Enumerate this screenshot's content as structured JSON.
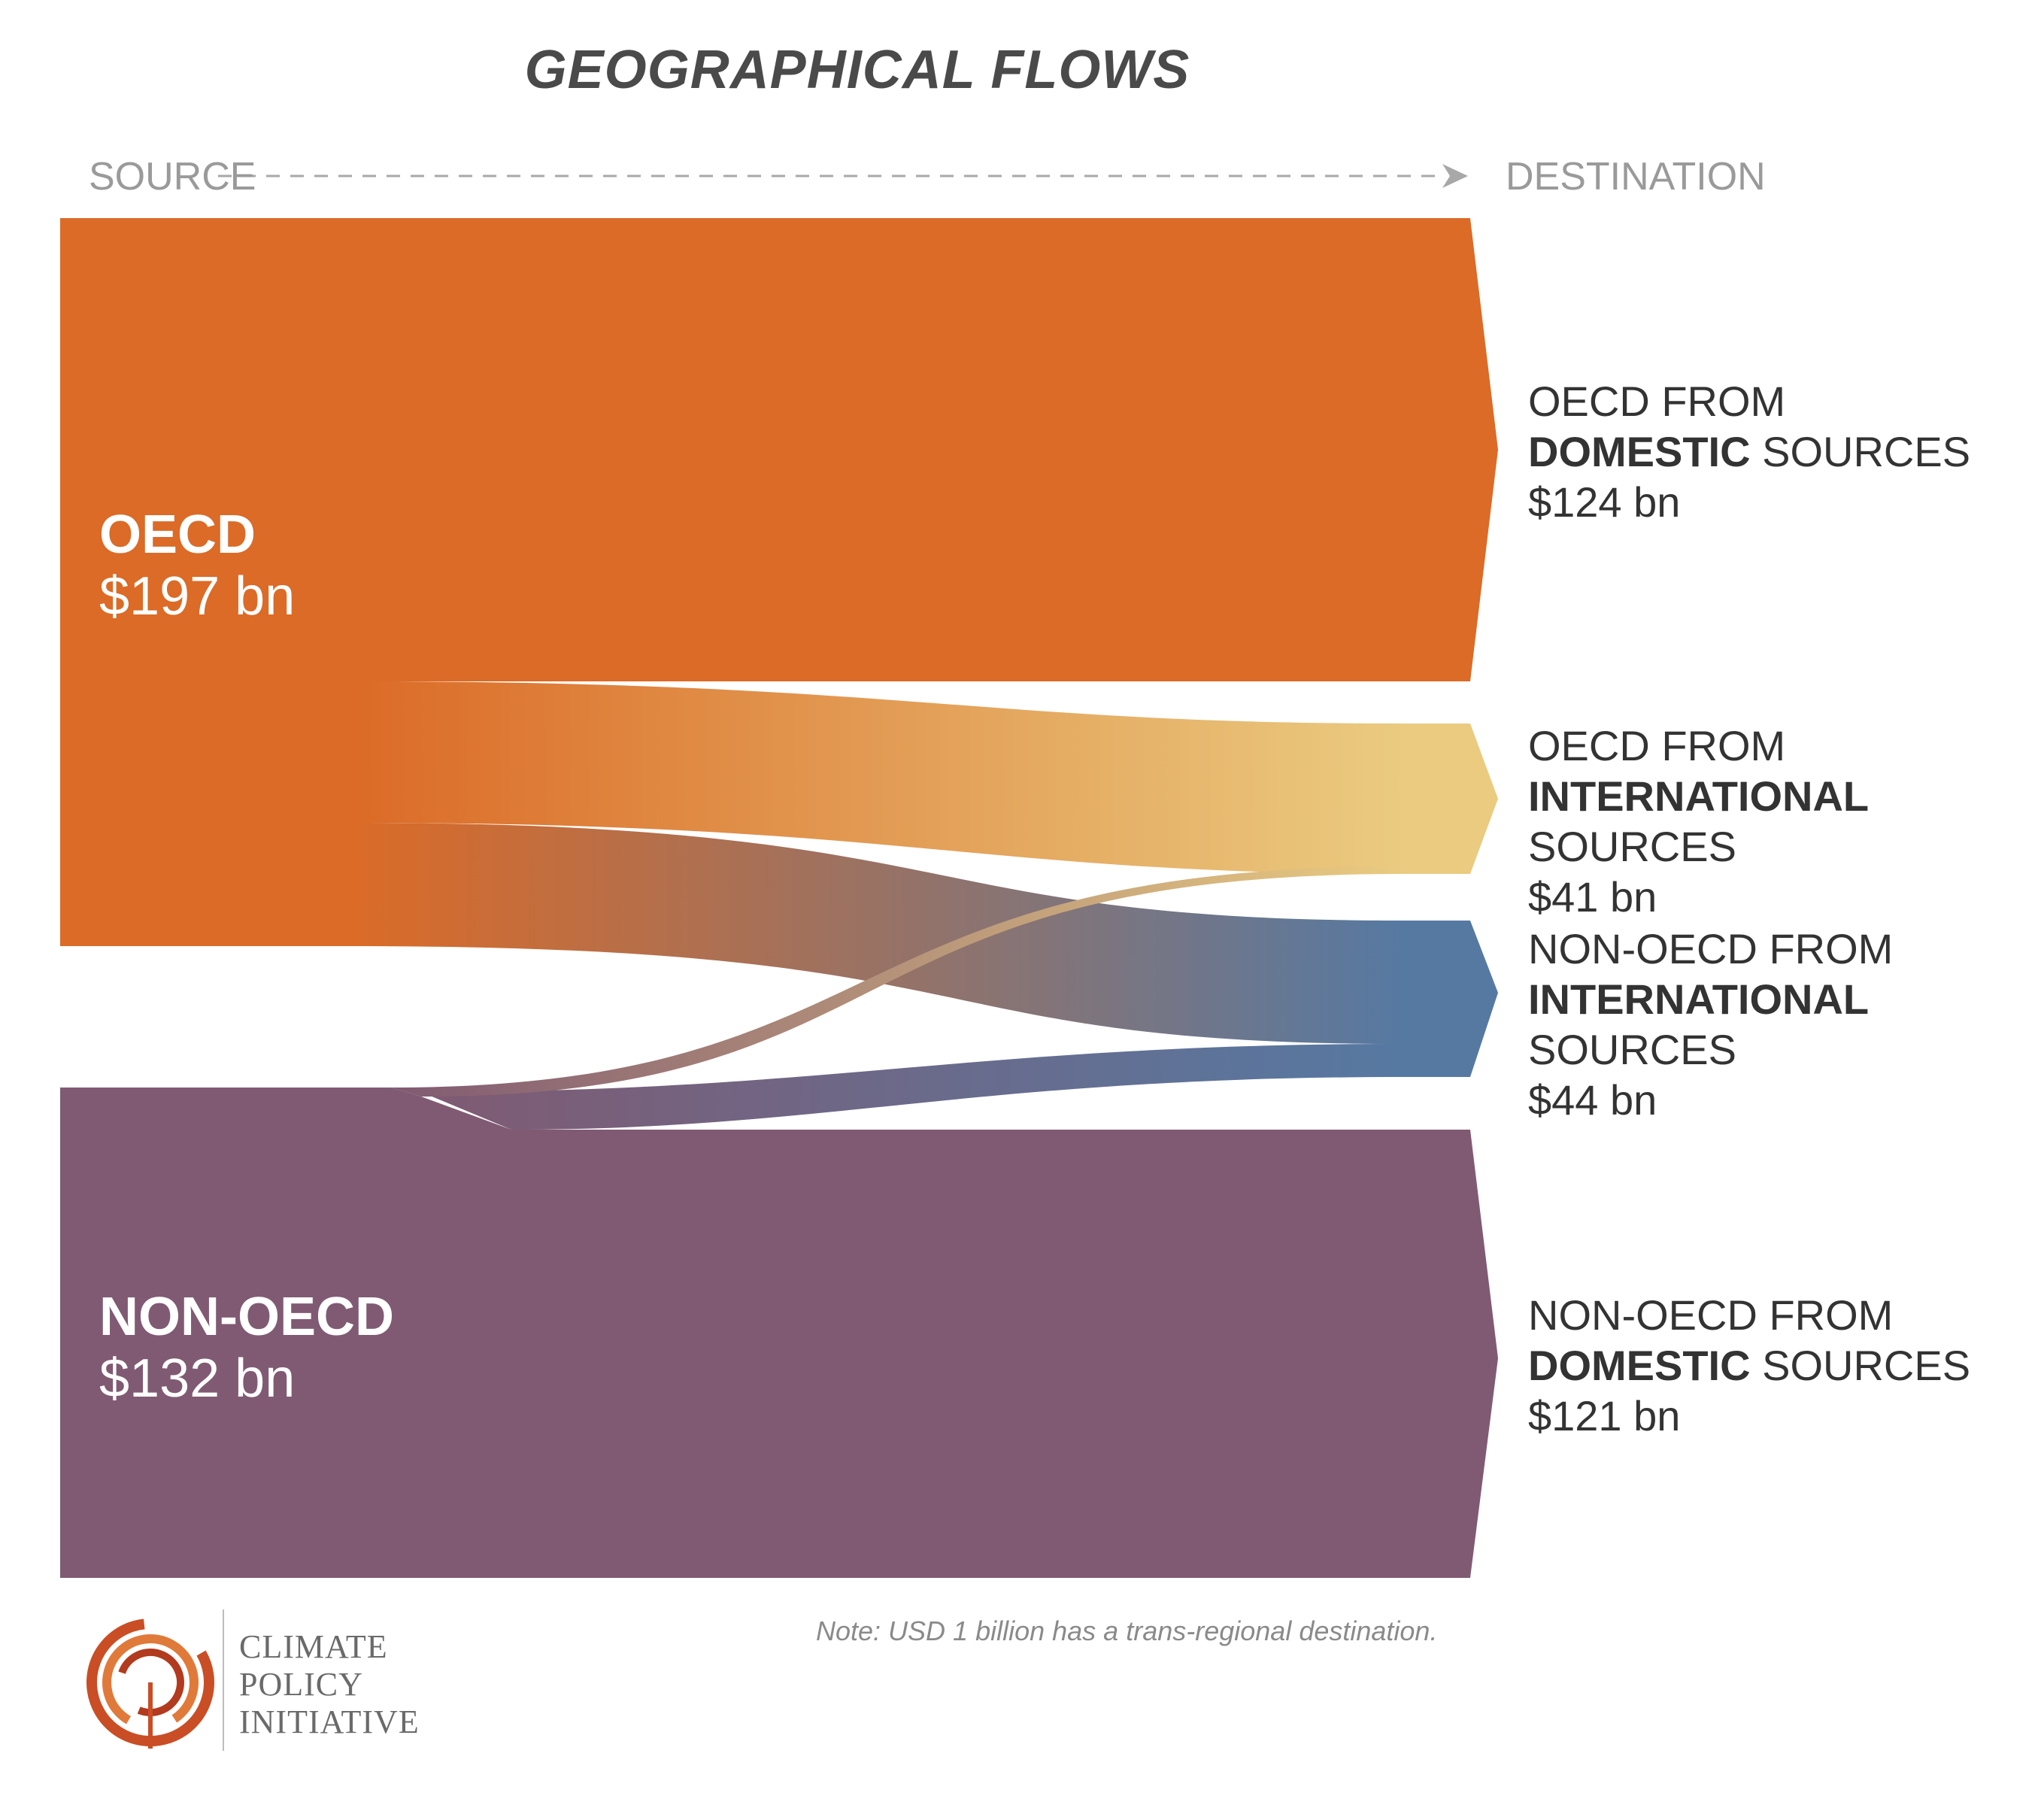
{
  "title": "GEOGRAPHICAL FLOWS",
  "axis": {
    "source_label": "SOURCE",
    "destination_label": "DESTINATION"
  },
  "colors": {
    "oecd": "#DB6B27",
    "non_oecd": "#805A72",
    "oecd_international": "#EACB80",
    "non_oecd_international": "#5679A2"
  },
  "sources": [
    {
      "id": "oecd",
      "name": "OECD",
      "value_text": "$197 bn",
      "value": 197
    },
    {
      "id": "non_oecd",
      "name": "NON-OECD",
      "value_text": "$132 bn",
      "value": 132
    }
  ],
  "destinations": [
    {
      "id": "oecd_domestic",
      "line1": "OECD FROM",
      "bold": "DOMESTIC",
      "rest": " SOURCES",
      "value_text": "$124 bn",
      "value": 124
    },
    {
      "id": "oecd_international",
      "line1": "OECD FROM",
      "bold": "INTERNATIONAL",
      "rest": " SOURCES",
      "value_text": "$41 bn",
      "value": 41
    },
    {
      "id": "non_oecd_international",
      "line1": "NON-OECD FROM",
      "bold": "INTERNATIONAL",
      "rest": " SOURCES",
      "value_text": "$44 bn",
      "value": 44
    },
    {
      "id": "non_oecd_domestic",
      "line1": "NON-OECD FROM",
      "bold": "DOMESTIC",
      "rest": " SOURCES",
      "value_text": "$121 bn",
      "value": 121
    }
  ],
  "note": "Note: USD 1 billion has a trans-regional destination.",
  "logo": {
    "line1": "CLIMATE",
    "line2": "POLICY",
    "line3": "INITIATIVE"
  }
}
